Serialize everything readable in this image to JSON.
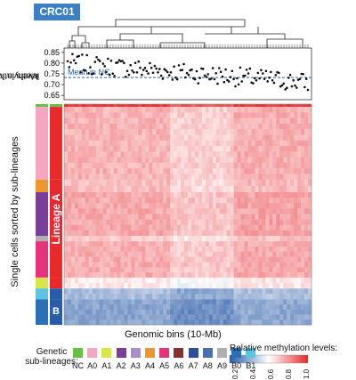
{
  "badge": "CRC01",
  "scatter_ylabel_line1": "Methylation",
  "scatter_ylabel_line2": "levels in NC",
  "mean_label": "Mean in NC",
  "heatmap_ylabel": "Single cells sorted by sub-lineages",
  "lineage_a": "Lineage A",
  "lineage_b": "B",
  "xlabel": "Genomic bins (10-Mb)",
  "legend_title_line1": "Genetic",
  "legend_title_line2": "sub-lineages:",
  "colorbar_title": "Relative methylation levels:",
  "colorbar_ticks": [
    "0.2",
    "0.4",
    "0.6",
    "0.8",
    "1.0"
  ],
  "sub_lineages": [
    {
      "label": "NC",
      "color": "#6abf4b"
    },
    {
      "label": "A0",
      "color": "#f4a7c0"
    },
    {
      "label": "A1",
      "color": "#d9e64b"
    },
    {
      "label": "A2",
      "color": "#7a3e96"
    },
    {
      "label": "A3",
      "color": "#a78fc8"
    },
    {
      "label": "A4",
      "color": "#f0962e"
    },
    {
      "label": "A5",
      "color": "#e8327c"
    },
    {
      "label": "A6",
      "color": "#8b2d2d"
    },
    {
      "label": "A7",
      "color": "#2e4fa0"
    },
    {
      "label": "A8",
      "color": "#4a6fb3"
    },
    {
      "label": "A9",
      "color": "#b0b0b0"
    },
    {
      "label": "B0",
      "color": "#2c6fb7"
    },
    {
      "label": "B1",
      "color": "#5cc3e0"
    }
  ],
  "colors": {
    "lineage_a": "#e8292d",
    "lineage_b": "#2a5ba8",
    "high": "#e8292d",
    "low": "#2a5ba8",
    "mean_line": "#2a5ba8"
  },
  "chart_data": [
    {
      "type": "scatter",
      "ylabel": "Methylation levels in NC",
      "ylim": [
        0.63,
        0.87
      ],
      "yticks": [
        "0.85",
        "0.80",
        "0.75",
        "0.70",
        "0.65"
      ],
      "ytick_values": [
        0.85,
        0.8,
        0.75,
        0.7,
        0.65
      ],
      "mean_value": 0.733,
      "mean_label": "Mean in NC",
      "trend": {
        "start": 0.8,
        "end": 0.71,
        "spread": 0.045,
        "n_bins": 150
      }
    },
    {
      "type": "heatmap",
      "xlabel": "Genomic bins (10-Mb)",
      "ylabel": "Single cells sorted by sub-lineages",
      "value_range": [
        0.2,
        1.0
      ],
      "row_groups": [
        {
          "label": "NC",
          "rows": 3,
          "level": 0.95
        },
        {
          "label": "A0",
          "rows": 80,
          "level": 0.72
        },
        {
          "label": "A4",
          "rows": 14,
          "level": 0.7
        },
        {
          "label": "A2",
          "rows": 48,
          "level": 0.74
        },
        {
          "label": "A9",
          "rows": 6,
          "level": 0.68
        },
        {
          "label": "A5",
          "rows": 40,
          "level": 0.73
        },
        {
          "label": "A1",
          "rows": 12,
          "level": 0.62
        },
        {
          "label": "B1",
          "rows": 12,
          "level": 0.42
        },
        {
          "label": "B0",
          "rows": 28,
          "level": 0.36
        }
      ]
    }
  ]
}
